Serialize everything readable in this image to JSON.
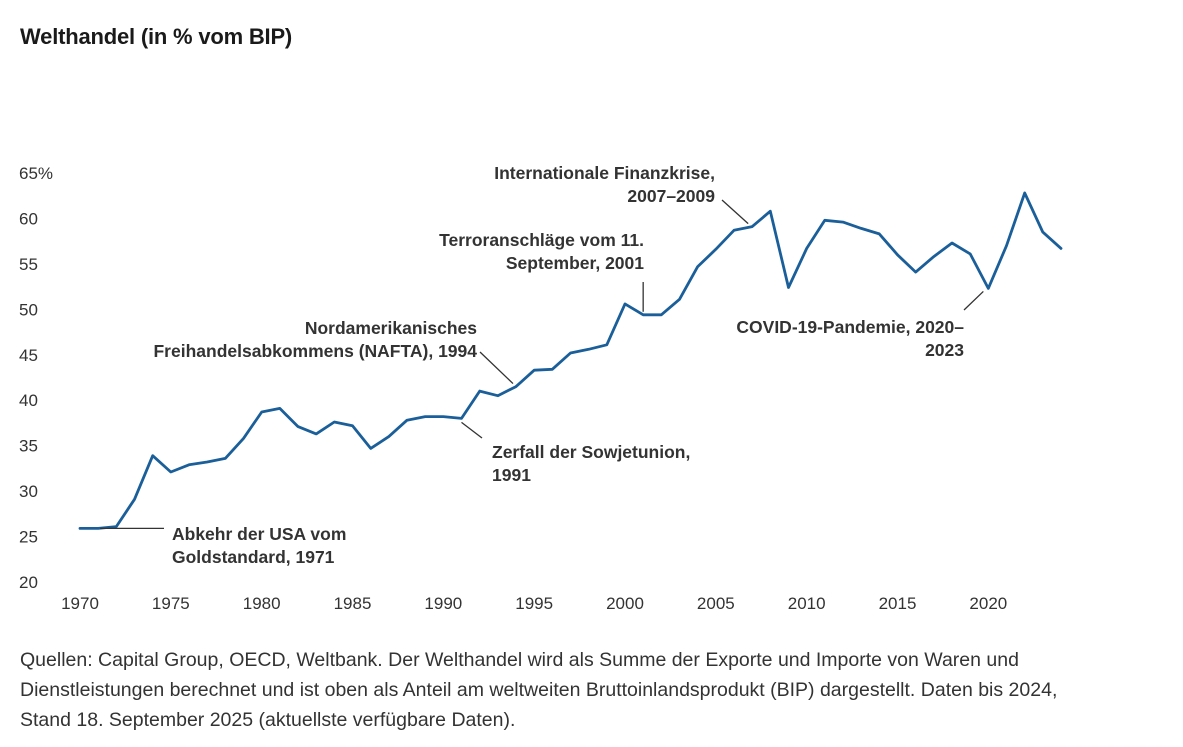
{
  "title": "Welthandel (in % vom BIP)",
  "footer": "Quellen: Capital Group, OECD, Weltbank. Der Welthandel wird als Summe der Exporte und Importe von Waren und Dienstleistungen berechnet und ist oben als Anteil am weltweiten Bruttoinlandsprodukt (BIP) dargestellt. Daten bis 2024, Stand 18. September 2025 (aktuellste verfügbare Daten).",
  "colors": {
    "line": "#1a5f99",
    "text": "#333333"
  },
  "chart_data": {
    "type": "line",
    "title": "Welthandel (in % vom BIP)",
    "xlabel": "",
    "ylabel": "",
    "xlim": [
      1970,
      2024
    ],
    "ylim": [
      20,
      65
    ],
    "x_ticks": [
      1970,
      1975,
      1980,
      1985,
      1990,
      1995,
      2000,
      2005,
      2010,
      2015,
      2020
    ],
    "x_tick_labels": [
      "1970",
      "1975",
      "1980",
      "1985",
      "1990",
      "1995",
      "2000",
      "2005",
      "2010",
      "2015",
      "2020"
    ],
    "y_ticks": [
      20,
      25,
      30,
      35,
      40,
      45,
      50,
      55,
      60,
      65
    ],
    "y_tick_labels": [
      "20",
      "25",
      "30",
      "35",
      "40",
      "45",
      "50",
      "55",
      "60",
      "65%"
    ],
    "grid": false,
    "series": [
      {
        "name": "Welthandel",
        "x": [
          1970,
          1971,
          1972,
          1973,
          1974,
          1975,
          1976,
          1977,
          1978,
          1979,
          1980,
          1981,
          1982,
          1983,
          1984,
          1985,
          1986,
          1987,
          1988,
          1989,
          1990,
          1991,
          1992,
          1993,
          1994,
          1995,
          1996,
          1997,
          1998,
          1999,
          2000,
          2001,
          2002,
          2003,
          2004,
          2005,
          2006,
          2007,
          2008,
          2009,
          2010,
          2011,
          2012,
          2013,
          2014,
          2015,
          2016,
          2017,
          2018,
          2019,
          2020,
          2021,
          2022,
          2023,
          2024
        ],
        "values": [
          25.9,
          25.9,
          26.1,
          29.1,
          33.9,
          32.1,
          32.9,
          33.2,
          33.6,
          35.8,
          38.7,
          39.1,
          37.1,
          36.3,
          37.6,
          37.2,
          34.7,
          36.0,
          37.8,
          38.2,
          38.2,
          38.0,
          41.0,
          40.5,
          41.5,
          43.3,
          43.4,
          45.2,
          45.6,
          46.1,
          50.6,
          49.4,
          49.4,
          51.1,
          54.7,
          56.6,
          58.7,
          59.1,
          60.8,
          52.4,
          56.7,
          59.8,
          59.6,
          58.9,
          58.3,
          56.0,
          54.1,
          55.8,
          57.3,
          56.1,
          52.3,
          57.0,
          62.8,
          58.5,
          56.7
        ]
      }
    ],
    "annotations": [
      {
        "lines": [
          "Abkehr der USA vom",
          "Goldstandard, 1971"
        ],
        "x": 1971,
        "y": 25.9
      },
      {
        "lines": [
          "Zerfall der Sowjetunion,",
          "1991"
        ],
        "x": 1991,
        "y": 38.0
      },
      {
        "lines": [
          "Nordamerikanisches",
          "Freihandelsabkommens (NAFTA), 1994"
        ],
        "x": 1994,
        "y": 41.5
      },
      {
        "lines": [
          "Terroranschläge vom 11.",
          "September, 2001"
        ],
        "x": 2001,
        "y": 49.4
      },
      {
        "lines": [
          "Internationale Finanzkrise,",
          "2007–2009"
        ],
        "x": 2007,
        "y": 59.1
      },
      {
        "lines": [
          "COVID-19-Pandemie, 2020–",
          "2023"
        ],
        "x": 2020,
        "y": 52.3
      }
    ]
  }
}
